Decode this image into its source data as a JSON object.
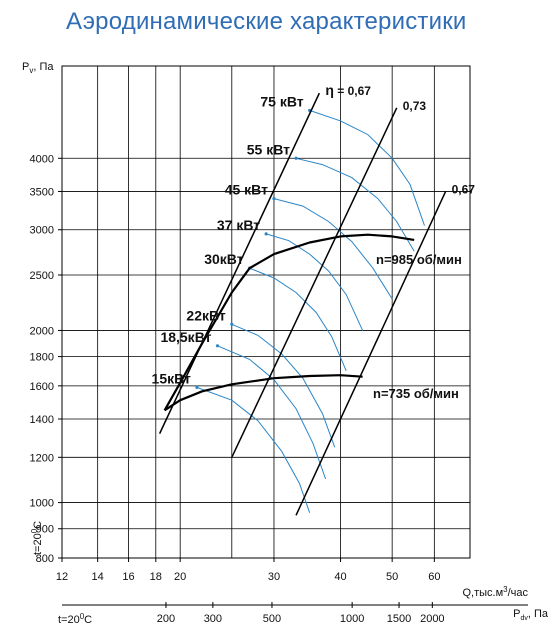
{
  "title": "Аэродинамические характеристики",
  "chart_data": {
    "type": "line",
    "title": "Аэродинамические характеристики",
    "y_axis": {
      "label_main": "P",
      "label_sub": "v",
      "label_unit": ", Па",
      "scale": "log",
      "range": [
        800,
        5800
      ],
      "ticks": [
        800,
        900,
        1000,
        1200,
        1400,
        1600,
        1800,
        2000,
        2500,
        3000,
        3500,
        4000
      ],
      "tick_labels": [
        "800",
        "900",
        "1000",
        "1200",
        "1400",
        "1600",
        "1800",
        "2000",
        "2500",
        "3000",
        "3500",
        "4000"
      ],
      "side_label_pre": "t=20",
      "side_label_sup": "0",
      "side_label_post": "C"
    },
    "x_axis": {
      "label_main": "Q,тыс.м",
      "label_sup": "3",
      "label_post": "/час",
      "scale": "log",
      "range": [
        12,
        70
      ],
      "ticks": [
        12,
        14,
        16,
        18,
        20,
        30,
        40,
        50,
        60
      ],
      "tick_labels": [
        "12",
        "14",
        "16",
        "18",
        "20",
        "30",
        "40",
        "50",
        "60"
      ],
      "grid_lines": [
        14,
        16,
        18,
        20,
        25,
        30,
        40,
        50,
        60
      ]
    },
    "dynamic_pressure_axis": {
      "label_main": "P",
      "label_sub": "dv",
      "label_unit": ", Па",
      "left_label_pre": "t=20",
      "left_label_sup": "0",
      "left_label_post": "C",
      "ticks": [
        200,
        300,
        500,
        1000,
        1500,
        2000
      ],
      "tick_labels": [
        "200",
        "300",
        "500",
        "1000",
        "1500",
        "2000"
      ]
    },
    "speed_curves": [
      {
        "label": "n=985 об/мин",
        "points": [
          [
            18.7,
            1450
          ],
          [
            20,
            1620
          ],
          [
            22,
            1900
          ],
          [
            25,
            2330
          ],
          [
            27,
            2570
          ],
          [
            30,
            2720
          ],
          [
            35,
            2850
          ],
          [
            40,
            2920
          ],
          [
            45,
            2940
          ],
          [
            50,
            2920
          ],
          [
            55,
            2880
          ]
        ]
      },
      {
        "label": "n=735 об/мин",
        "points": [
          [
            18.7,
            1450
          ],
          [
            20,
            1510
          ],
          [
            22,
            1565
          ],
          [
            25,
            1610
          ],
          [
            30,
            1650
          ],
          [
            35,
            1665
          ],
          [
            40,
            1670
          ],
          [
            44,
            1660
          ]
        ]
      }
    ],
    "efficiency_lines": [
      {
        "label_pre": "η",
        "label_post": " = 0,67",
        "points": [
          [
            18.3,
            1320
          ],
          [
            36.5,
            5200
          ]
        ]
      },
      {
        "label": "0,73",
        "points": [
          [
            25,
            1200
          ],
          [
            51,
            4900
          ]
        ]
      },
      {
        "label": "0,67",
        "points": [
          [
            33,
            950
          ],
          [
            63,
            3500
          ]
        ]
      }
    ],
    "power_curves": [
      {
        "label": "75 кВт",
        "points": [
          [
            35,
            4850
          ],
          [
            40,
            4650
          ],
          [
            45,
            4400
          ],
          [
            50,
            4000
          ],
          [
            54,
            3600
          ],
          [
            57.5,
            3050
          ]
        ]
      },
      {
        "label": "55 кВт",
        "points": [
          [
            33,
            4000
          ],
          [
            37,
            3900
          ],
          [
            42,
            3700
          ],
          [
            47,
            3400
          ],
          [
            51,
            3100
          ],
          [
            55,
            2750
          ]
        ]
      },
      {
        "label": "45 кВт",
        "points": [
          [
            30,
            3400
          ],
          [
            34,
            3300
          ],
          [
            38,
            3100
          ],
          [
            42,
            2860
          ],
          [
            46,
            2570
          ],
          [
            50,
            2270
          ]
        ]
      },
      {
        "label": "37 кВт",
        "points": [
          [
            29,
            2950
          ],
          [
            32,
            2870
          ],
          [
            35,
            2720
          ],
          [
            38,
            2540
          ],
          [
            41,
            2310
          ],
          [
            44,
            2000
          ]
        ]
      },
      {
        "label": "30кВт",
        "points": [
          [
            27,
            2570
          ],
          [
            30,
            2470
          ],
          [
            33,
            2330
          ],
          [
            36,
            2150
          ],
          [
            38.5,
            1950
          ],
          [
            41,
            1700
          ]
        ]
      },
      {
        "label": "22кВт",
        "points": [
          [
            25,
            2050
          ],
          [
            28,
            1960
          ],
          [
            31,
            1820
          ],
          [
            34,
            1650
          ],
          [
            37,
            1430
          ],
          [
            39,
            1250
          ]
        ]
      },
      {
        "label": "18,5кВт",
        "points": [
          [
            23.5,
            1880
          ],
          [
            27,
            1780
          ],
          [
            30,
            1640
          ],
          [
            33,
            1460
          ],
          [
            35.5,
            1270
          ],
          [
            37.5,
            1100
          ]
        ]
      },
      {
        "label": "15кВт",
        "points": [
          [
            21.5,
            1590
          ],
          [
            25,
            1510
          ],
          [
            28,
            1390
          ],
          [
            31,
            1230
          ],
          [
            33.5,
            1080
          ],
          [
            35,
            960
          ]
        ]
      }
    ],
    "colors": {
      "grid": "#000000",
      "speed_curve": "#000000",
      "efficiency_line": "#000000",
      "power_curve": "#2a86c8",
      "title": "#2f6db5"
    },
    "grid": true
  }
}
